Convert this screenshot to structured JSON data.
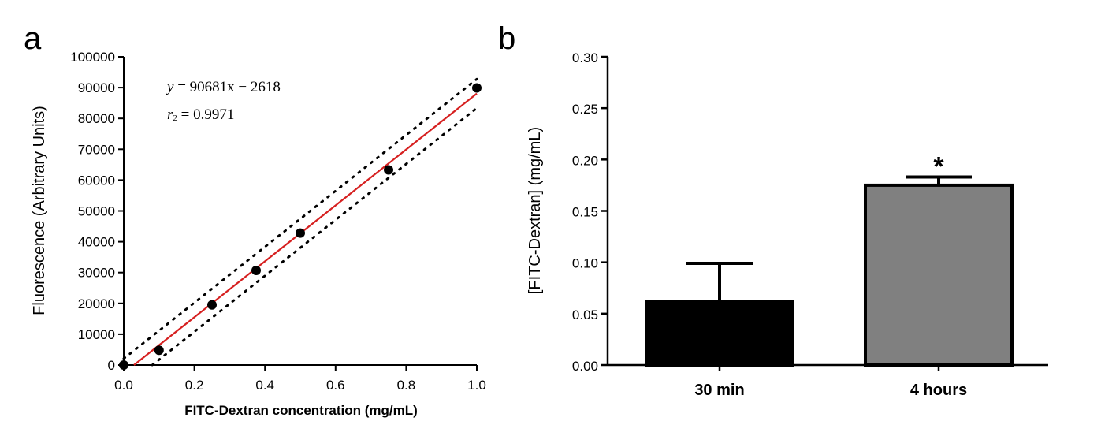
{
  "chart_data": [
    {
      "panel": "a",
      "type": "scatter",
      "xlabel": "FITC-Dextran concentration (mg/mL)",
      "ylabel": "Fluorescence (Arbitrary Units)",
      "xlim": [
        0.0,
        1.0
      ],
      "ylim": [
        0,
        100000
      ],
      "xticks": [
        "0.0",
        "0.2",
        "0.4",
        "0.6",
        "0.8",
        "1.0"
      ],
      "yticks": [
        "0",
        "10000",
        "20000",
        "30000",
        "40000",
        "50000",
        "60000",
        "70000",
        "80000",
        "90000",
        "100000"
      ],
      "points": [
        {
          "x": 0.0,
          "y": 0
        },
        {
          "x": 0.1,
          "y": 4800
        },
        {
          "x": 0.25,
          "y": 19500
        },
        {
          "x": 0.375,
          "y": 30700
        },
        {
          "x": 0.5,
          "y": 42800
        },
        {
          "x": 0.75,
          "y": 63300
        },
        {
          "x": 1.0,
          "y": 89900
        }
      ],
      "fit": {
        "slope": 90681,
        "intercept": -2618,
        "color": "#d62020"
      },
      "band_color": "#000000",
      "equation": {
        "y": "y",
        "rhs": " = 90681x − 2618",
        "r": "r",
        "r_sub": "2",
        "r_rhs": " = 0.9971"
      }
    },
    {
      "panel": "b",
      "type": "bar",
      "categories": [
        "30 min",
        "4 hours"
      ],
      "values": [
        0.062,
        0.175
      ],
      "errors": [
        0.037,
        0.008
      ],
      "colors": [
        "#000000",
        "#808080"
      ],
      "ylabel": "[FITC-Dextran] (mg/mL)",
      "ylim": [
        0.0,
        0.3
      ],
      "yticks": [
        "0.00",
        "0.05",
        "0.10",
        "0.15",
        "0.20",
        "0.25",
        "0.30"
      ],
      "annotation": "*"
    }
  ]
}
